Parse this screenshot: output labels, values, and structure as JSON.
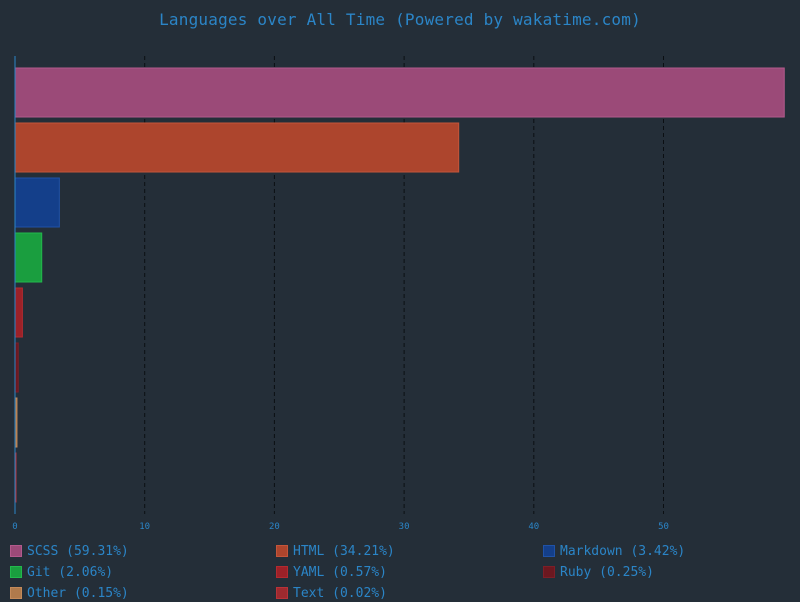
{
  "chart_data": {
    "type": "bar",
    "orientation": "horizontal",
    "title": "Languages over All Time (Powered by wakatime.com)",
    "xlim": [
      0,
      59.5
    ],
    "x_ticks": [
      0,
      10,
      20,
      30,
      40,
      50
    ],
    "grid": "vertical-dashed",
    "legend_position": "bottom",
    "series": [
      {
        "name": "SCSS",
        "value": 59.31,
        "label": "SCSS (59.31%)",
        "color": "#9b4a78",
        "edge_color": "#b25a8c"
      },
      {
        "name": "HTML",
        "value": 34.21,
        "label": "HTML (34.21%)",
        "color": "#ad452d",
        "edge_color": "#c4553a"
      },
      {
        "name": "Markdown",
        "value": 3.42,
        "label": "Markdown (3.42%)",
        "color": "#143f8a",
        "edge_color": "#1f52a8"
      },
      {
        "name": "Git",
        "value": 2.06,
        "label": "Git (2.06%)",
        "color": "#1a9e3f",
        "edge_color": "#22b84c"
      },
      {
        "name": "YAML",
        "value": 0.57,
        "label": "YAML (0.57%)",
        "color": "#9c2128",
        "edge_color": "#b32a30"
      },
      {
        "name": "Ruby",
        "value": 0.25,
        "label": "Ruby (0.25%)",
        "color": "#6c1820",
        "edge_color": "#7e1e27"
      },
      {
        "name": "Other",
        "value": 0.15,
        "label": "Other (0.15%)",
        "color": "#b07a4c",
        "edge_color": "#c48a5a"
      },
      {
        "name": "Text",
        "value": 0.02,
        "label": "Text (0.02%)",
        "color": "#9e2a2f",
        "edge_color": "#b83238"
      }
    ]
  },
  "colors": {
    "background": "#242e38",
    "text": "#2b85c7",
    "axis": "#2b85c7",
    "grid": "#0b0f13"
  }
}
